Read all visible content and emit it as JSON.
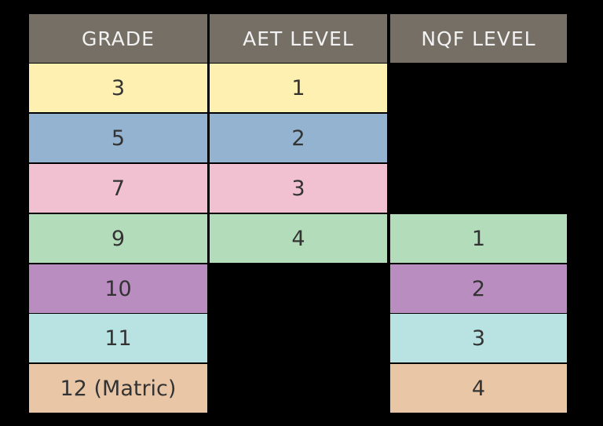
{
  "headers": [
    "GRADE",
    "AET LEVEL",
    "NQF LEVEL"
  ],
  "colors": {
    "header": "#756f66",
    "rows": [
      "#fdf0b0",
      "#93b3d0",
      "#f1c1d1",
      "#b3ddba",
      "#ba8dc1",
      "#b9e3e3",
      "#e8c6a6"
    ]
  },
  "rows": [
    {
      "grade": "3",
      "aet": "1",
      "nqf": ""
    },
    {
      "grade": "5",
      "aet": "2",
      "nqf": ""
    },
    {
      "grade": "7",
      "aet": "3",
      "nqf": ""
    },
    {
      "grade": "9",
      "aet": "4",
      "nqf": "1"
    },
    {
      "grade": "10",
      "aet": "",
      "nqf": "2"
    },
    {
      "grade": "11",
      "aet": "",
      "nqf": "3"
    },
    {
      "grade": "12 (Matric)",
      "aet": "",
      "nqf": "4"
    }
  ]
}
